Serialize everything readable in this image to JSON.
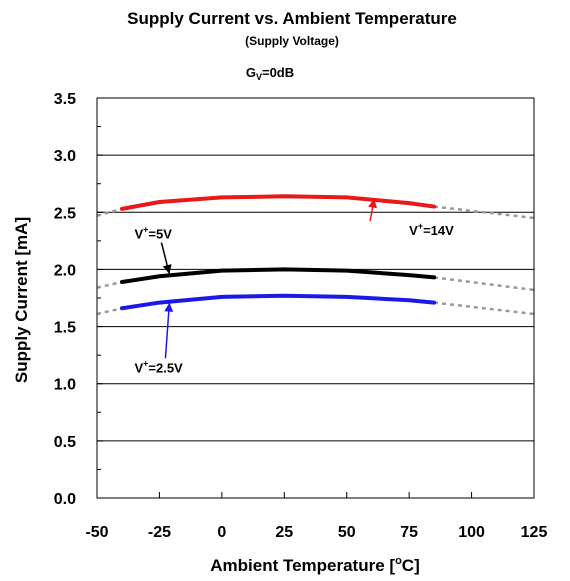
{
  "chart_data": {
    "type": "line",
    "title": "Supply Current vs. Ambient Temperature",
    "subtitle": "(Supply Voltage)",
    "condition": {
      "main": "G",
      "sub": "V",
      "rest": "=0dB"
    },
    "xlabel": {
      "before": "Ambient Temperature [",
      "sup": "o",
      "after": "C]"
    },
    "ylabel": "Supply Current [mA]",
    "xlim": [
      -50,
      125
    ],
    "ylim": [
      0,
      3.5
    ],
    "xticks": [
      "-50",
      "-25",
      "0",
      "25",
      "50",
      "75",
      "100",
      "125"
    ],
    "yticks": [
      "0.0",
      "0.5",
      "1.0",
      "1.5",
      "2.0",
      "2.5",
      "3.0",
      "3.5"
    ],
    "grid": "horizontal",
    "series": [
      {
        "name": "V+=14V",
        "label": {
          "main": "V",
          "sup": "+",
          "rest": "=14V"
        },
        "color": "#e8191a",
        "measured": {
          "x": [
            -40,
            -25,
            0,
            25,
            50,
            75,
            85
          ],
          "y": [
            2.53,
            2.59,
            2.63,
            2.64,
            2.63,
            2.58,
            2.55
          ]
        },
        "extrapolated": {
          "x": [
            -50,
            -40,
            85,
            125
          ],
          "y": [
            2.47,
            2.53,
            2.55,
            2.45
          ]
        }
      },
      {
        "name": "V+=5V",
        "label": {
          "main": "V",
          "sup": "+",
          "rest": "=5V"
        },
        "color": "#000000",
        "measured": {
          "x": [
            -40,
            -25,
            0,
            25,
            50,
            75,
            85
          ],
          "y": [
            1.89,
            1.94,
            1.99,
            2.0,
            1.99,
            1.95,
            1.93
          ]
        },
        "extrapolated": {
          "x": [
            -50,
            -40,
            85,
            125
          ],
          "y": [
            1.84,
            1.89,
            1.93,
            1.82
          ]
        }
      },
      {
        "name": "V+=2.5V",
        "label": {
          "main": "V",
          "sup": "+",
          "rest": "=2.5V"
        },
        "color": "#1a1ae8",
        "measured": {
          "x": [
            -40,
            -25,
            0,
            25,
            50,
            75,
            85
          ],
          "y": [
            1.66,
            1.71,
            1.76,
            1.77,
            1.76,
            1.73,
            1.71
          ]
        },
        "extrapolated": {
          "x": [
            -50,
            -40,
            85,
            125
          ],
          "y": [
            1.61,
            1.66,
            1.71,
            1.61
          ]
        }
      }
    ],
    "annotations": [
      {
        "series": 0,
        "text_at": [
          75,
          2.3
        ],
        "arrow_to": [
          61,
          2.62
        ]
      },
      {
        "series": 1,
        "text_at": [
          -35,
          2.27
        ],
        "arrow_to": [
          -21,
          1.96
        ]
      },
      {
        "series": 2,
        "text_at": [
          -35,
          1.1
        ],
        "arrow_to": [
          -21,
          1.71
        ]
      }
    ]
  }
}
